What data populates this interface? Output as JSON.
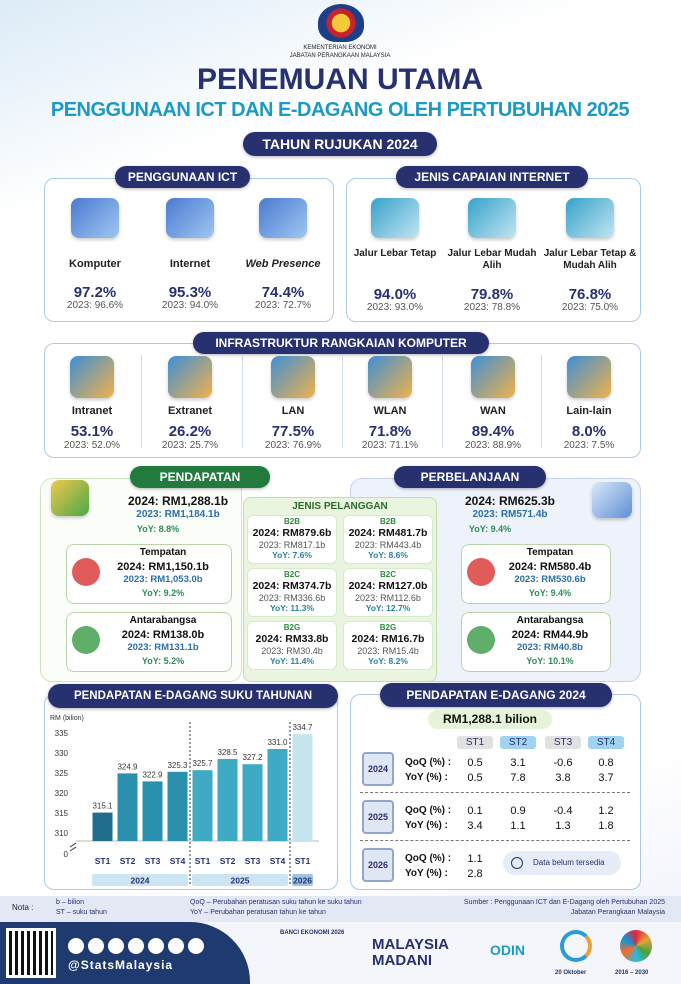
{
  "header": {
    "ministry": [
      "KEMENTERIAN EKONOMI",
      "JABATAN PERANGKAAN MALAYSIA"
    ],
    "title": "PENEMUAN UTAMA",
    "subtitle": "PENGGUNAAN ICT DAN E-DAGANG OLEH PERTUBUHAN 2025",
    "reference": "TAHUN RUJUKAN 2024"
  },
  "ict": {
    "title": "PENGGUNAAN ICT",
    "items": [
      {
        "label": "Komputer",
        "value": "97.2%",
        "prev": "2023: 96.6%"
      },
      {
        "label": "Internet",
        "value": "95.3%",
        "prev": "2023: 94.0%"
      },
      {
        "label": "Web Presence",
        "value": "74.4%",
        "prev": "2023: 72.7%"
      }
    ]
  },
  "internet": {
    "title": "JENIS CAPAIAN INTERNET",
    "items": [
      {
        "label": "Jalur Lebar Tetap",
        "value": "94.0%",
        "prev": "2023: 93.0%"
      },
      {
        "label": "Jalur Lebar Mudah Alih",
        "value": "79.8%",
        "prev": "2023: 78.8%"
      },
      {
        "label": "Jalur Lebar Tetap & Mudah Alih",
        "value": "76.8%",
        "prev": "2023: 75.0%"
      }
    ]
  },
  "network": {
    "title": "INFRASTRUKTUR RANGKAIAN KOMPUTER",
    "items": [
      {
        "label": "Intranet",
        "value": "53.1%",
        "prev": "2023: 52.0%"
      },
      {
        "label": "Extranet",
        "value": "26.2%",
        "prev": "2023: 25.7%"
      },
      {
        "label": "LAN",
        "value": "77.5%",
        "prev": "2023: 76.9%"
      },
      {
        "label": "WLAN",
        "value": "71.8%",
        "prev": "2023: 71.1%"
      },
      {
        "label": "WAN",
        "value": "89.4%",
        "prev": "2023: 88.9%"
      },
      {
        "label": "Lain-lain",
        "value": "8.0%",
        "prev": "2023: 7.5%"
      }
    ]
  },
  "income": {
    "title": "PENDAPATAN",
    "total": "2024: RM1,288.1b",
    "prev": "2023: RM1,184.1b",
    "yoy": "YoY: 8.8%",
    "groups": [
      {
        "label": "Tempatan",
        "total": "2024: RM1,150.1b",
        "prev": "2023: RM1,053.0b",
        "yoy": "YoY: 9.2%"
      },
      {
        "label": "Antarabangsa",
        "total": "2024: RM138.0b",
        "prev": "2023: RM131.1b",
        "yoy": "YoY: 5.2%"
      }
    ]
  },
  "expense": {
    "title": "PERBELANJAAN",
    "total": "2024: RM625.3b",
    "prev": "2023: RM571.4b",
    "yoy": "YoY: 9.4%",
    "groups": [
      {
        "label": "Tempatan",
        "total": "2024: RM580.4b",
        "prev": "2023: RM530.6b",
        "yoy": "YoY: 9.4%"
      },
      {
        "label": "Antarabangsa",
        "total": "2024: RM44.9b",
        "prev": "2023: RM40.8b",
        "yoy": "YoY: 10.1%"
      }
    ]
  },
  "customers": {
    "title": "JENIS PELANGGAN",
    "income_cells": [
      {
        "type": "B2B",
        "total": "2024: RM879.6b",
        "prev": "2023: RM817.1b",
        "yoy": "YoY: 7.6%"
      },
      {
        "type": "B2C",
        "total": "2024: RM374.7b",
        "prev": "2023: RM336.6b",
        "yoy": "YoY: 11.3%"
      },
      {
        "type": "B2G",
        "total": "2024: RM33.8b",
        "prev": "2023: RM30.4b",
        "yoy": "YoY: 11.4%"
      }
    ],
    "expense_cells": [
      {
        "type": "B2B",
        "total": "2024: RM481.7b",
        "prev": "2023: RM443.4b",
        "yoy": "YoY: 8.6%"
      },
      {
        "type": "B2C",
        "total": "2024: RM127.0b",
        "prev": "2023: RM112.6b",
        "yoy": "YoY: 12.7%"
      },
      {
        "type": "B2G",
        "total": "2024: RM16.7b",
        "prev": "2023: RM15.4b",
        "yoy": "YoY: 8.2%"
      }
    ]
  },
  "chart_data": {
    "type": "bar",
    "title": "PENDAPATAN E-DAGANG SUKU TAHUNAN",
    "y_label": "RM (bilion)",
    "axis_break_label": "0",
    "categories": [
      "ST1",
      "ST2",
      "ST3",
      "ST4",
      "ST1",
      "ST2",
      "ST3",
      "ST4",
      "ST1"
    ],
    "year_groups": [
      "2024",
      "2025",
      "2026"
    ],
    "values": [
      315.1,
      324.9,
      322.9,
      325.3,
      325.7,
      328.5,
      327.2,
      331.0,
      334.7
    ],
    "value_labels": [
      "315.1",
      "324.9",
      "322.9",
      "325.3",
      "325.7",
      "328.5",
      "327.2",
      "331.0",
      "334.7"
    ],
    "colors": [
      "#1f6c8c",
      "#2a90ad",
      "#2a90ad",
      "#2a90ad",
      "#3eaac4",
      "#3eaac4",
      "#3eaac4",
      "#3eaac4",
      "#c4e4ee"
    ],
    "ylim": [
      308,
      337
    ],
    "yticks": [
      310,
      315,
      320,
      325,
      330,
      335
    ],
    "grid": false
  },
  "ecommerce_2024": {
    "title": "PENDAPATAN E-DAGANG 2024",
    "total": "RM1,288.1 bilion",
    "quarters": [
      "ST1",
      "ST2",
      "ST3",
      "ST4"
    ],
    "years": [
      {
        "year": "2024",
        "rows": [
          {
            "label": "QoQ (%) :",
            "values": [
              "0.5",
              "3.1",
              "-0.6",
              "0.8"
            ]
          },
          {
            "label": "YoY (%) :",
            "values": [
              "0.5",
              "7.8",
              "3.8",
              "3.7"
            ]
          }
        ]
      },
      {
        "year": "2025",
        "rows": [
          {
            "label": "QoQ (%) :",
            "values": [
              "0.1",
              "0.9",
              "-0.4",
              "1.2"
            ]
          },
          {
            "label": "YoY (%) :",
            "values": [
              "3.4",
              "1.1",
              "1.3",
              "1.8"
            ]
          }
        ]
      },
      {
        "year": "2026",
        "rows": [
          {
            "label": "QoQ (%) :",
            "values": [
              "1.1"
            ]
          },
          {
            "label": "YoY (%) :",
            "values": [
              "2.8"
            ]
          }
        ]
      }
    ],
    "note": "Data belum tersedia"
  },
  "footer": {
    "nota": "Nota :",
    "notes": [
      "b – bilion",
      "ST – suku tahun"
    ],
    "definitions": [
      "QoQ – Perubahan peratusan suku tahun ke suku tahun",
      "YoY – Perubahan peratusan tahun ke tahun"
    ],
    "source": [
      "Sumber : Penggunaan ICT dan E-Dagang oleh Pertubuhan 2025",
      "Jabatan Perangkaan Malaysia"
    ],
    "social": "@StatsMalaysia",
    "logos": [
      "BANCI EKONOMI 2026",
      "MALAYSIA",
      "MADANI",
      "ODIN",
      "20 Oktober",
      "2016 – 2030"
    ]
  }
}
